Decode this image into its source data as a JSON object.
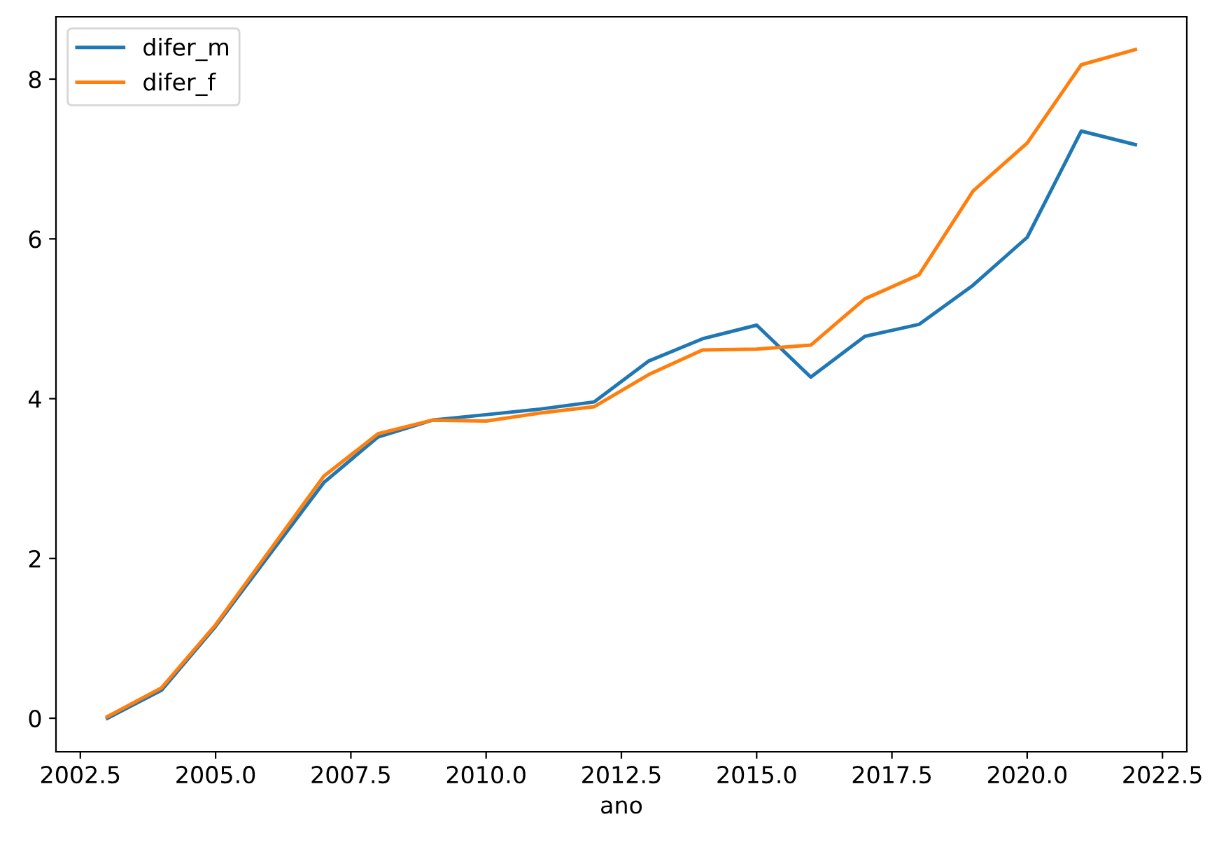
{
  "chart_data": {
    "type": "line",
    "xlabel": "ano",
    "x": [
      2003,
      2004,
      2005,
      2006,
      2007,
      2008,
      2009,
      2010,
      2011,
      2012,
      2013,
      2014,
      2015,
      2016,
      2017,
      2018,
      2019,
      2020,
      2021,
      2022
    ],
    "series": [
      {
        "name": "difer_m",
        "color": "#1f77b4",
        "values": [
          0.0,
          0.35,
          1.15,
          2.05,
          2.95,
          3.52,
          3.73,
          3.8,
          3.87,
          3.96,
          4.47,
          4.75,
          4.92,
          4.27,
          4.78,
          4.93,
          5.42,
          6.02,
          7.35,
          7.18
        ]
      },
      {
        "name": "difer_f",
        "color": "#ff7f0e",
        "values": [
          0.02,
          0.38,
          1.17,
          2.1,
          3.03,
          3.56,
          3.73,
          3.72,
          3.82,
          3.9,
          4.3,
          4.61,
          4.62,
          4.67,
          5.25,
          5.55,
          6.6,
          7.2,
          8.18,
          8.37
        ]
      }
    ],
    "xlim": [
      2002.05,
      2022.95
    ],
    "ylim": [
      -0.42,
      8.78
    ],
    "xticks": [
      {
        "value": 2002.5,
        "label": "2002.5"
      },
      {
        "value": 2005,
        "label": "2005.0"
      },
      {
        "value": 2007.5,
        "label": "2007.5"
      },
      {
        "value": 2010,
        "label": "2010.0"
      },
      {
        "value": 2012.5,
        "label": "2012.5"
      },
      {
        "value": 2015,
        "label": "2015.0"
      },
      {
        "value": 2017.5,
        "label": "2017.5"
      },
      {
        "value": 2020,
        "label": "2020.0"
      },
      {
        "value": 2022.5,
        "label": "2022.5"
      }
    ],
    "yticks": [
      0,
      2,
      4,
      6,
      8
    ],
    "grid": false,
    "legend": "top left",
    "marker": "none",
    "line_style": "solid"
  }
}
